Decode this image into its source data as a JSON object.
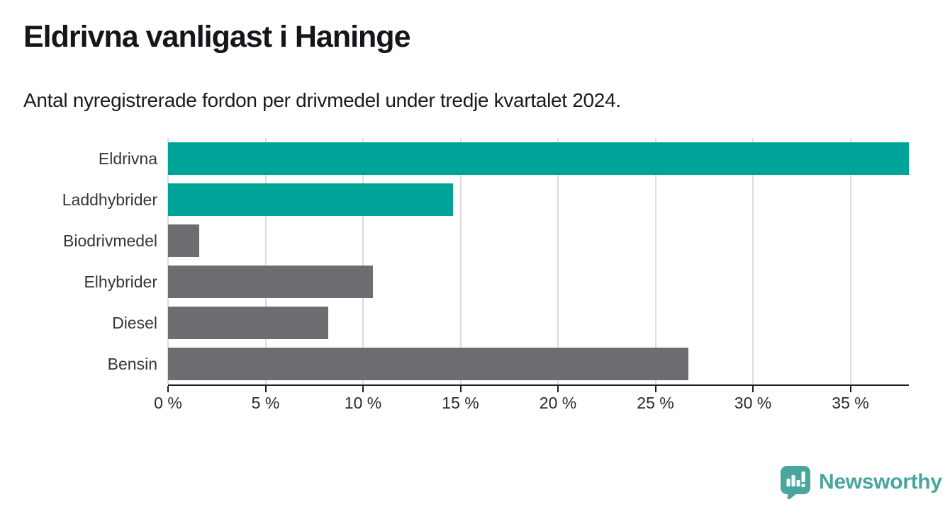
{
  "header": {
    "title": "Eldrivna vanligast i Haninge",
    "subtitle": "Antal nyregistrerade fordon per drivmedel under tredje kvartalet 2024."
  },
  "chart_data": {
    "type": "bar",
    "orientation": "horizontal",
    "title": "Eldrivna vanligast i Haninge",
    "subtitle": "Antal nyregistrerade fordon per drivmedel under tredje kvartalet 2024.",
    "categories": [
      "Eldrivna",
      "Laddhybrider",
      "Biodrivmedel",
      "Elhybrider",
      "Diesel",
      "Bensin"
    ],
    "values": [
      38,
      14.6,
      1.6,
      10.5,
      8.2,
      26.7
    ],
    "unit": "%",
    "xlim": [
      0,
      38
    ],
    "xticks": [
      0,
      5,
      10,
      15,
      20,
      25,
      30,
      35
    ],
    "xtick_suffix": " %",
    "grid": true,
    "legend": "none",
    "highlighted": [
      true,
      true,
      false,
      false,
      false,
      false
    ],
    "colors": {
      "highlight": "#00a398",
      "default": "#6d6d71",
      "gridline": "#dcdcdc",
      "axis": "#1f1f1f"
    }
  },
  "footer": {
    "brand": "Newsworthy",
    "brand_color": "#4aa59f",
    "logo_icon": "bar-chart-speech-bubble-icon"
  }
}
